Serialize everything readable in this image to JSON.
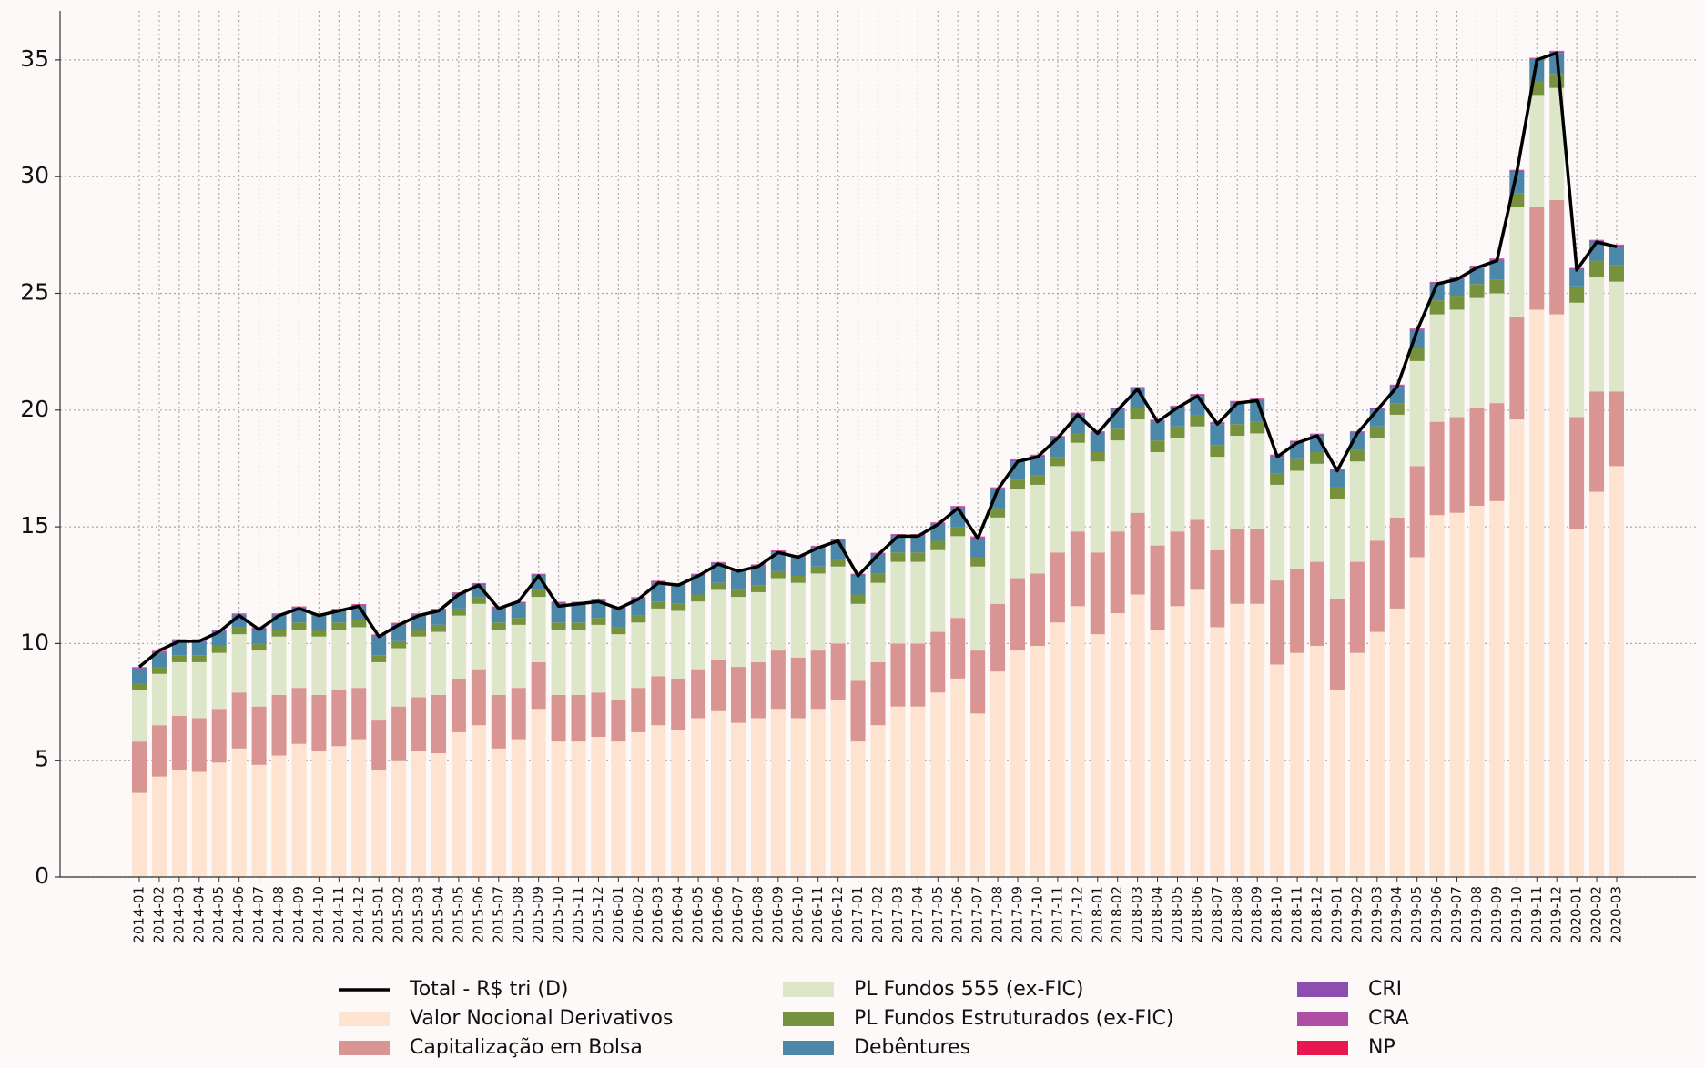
{
  "chart_data": {
    "type": "bar",
    "stacked": true,
    "grid": true,
    "legend_position": "bottom",
    "categories": [
      "2014-01",
      "2014-02",
      "2014-03",
      "2014-04",
      "2014-05",
      "2014-06",
      "2014-07",
      "2014-08",
      "2014-09",
      "2014-10",
      "2014-11",
      "2014-12",
      "2015-01",
      "2015-02",
      "2015-03",
      "2015-04",
      "2015-05",
      "2015-06",
      "2015-07",
      "2015-08",
      "2015-09",
      "2015-10",
      "2015-11",
      "2015-12",
      "2016-01",
      "2016-02",
      "2016-03",
      "2016-04",
      "2016-05",
      "2016-06",
      "2016-07",
      "2016-08",
      "2016-09",
      "2016-10",
      "2016-11",
      "2016-12",
      "2017-01",
      "2017-02",
      "2017-03",
      "2017-04",
      "2017-05",
      "2017-06",
      "2017-07",
      "2017-08",
      "2017-09",
      "2017-10",
      "2017-11",
      "2017-12",
      "2018-01",
      "2018-02",
      "2018-03",
      "2018-04",
      "2018-05",
      "2018-06",
      "2018-07",
      "2018-08",
      "2018-09",
      "2018-10",
      "2018-11",
      "2018-12",
      "2019-01",
      "2019-02",
      "2019-03",
      "2019-04",
      "2019-05",
      "2019-06",
      "2019-07",
      "2019-08",
      "2019-09",
      "2019-10",
      "2019-11",
      "2019-12",
      "2020-01",
      "2020-02",
      "2020-03"
    ],
    "ylim": [
      0,
      37.1
    ],
    "yticks": [
      0,
      5,
      10,
      15,
      20,
      25,
      30,
      35
    ],
    "series": [
      {
        "name": "Valor Nocional Derivativos",
        "color": "#fde3d0",
        "values": [
          3.6,
          4.3,
          4.6,
          4.5,
          4.9,
          5.5,
          4.8,
          5.2,
          5.7,
          5.4,
          5.6,
          5.9,
          4.6,
          5.0,
          5.4,
          5.3,
          6.2,
          6.5,
          5.5,
          5.9,
          7.2,
          5.8,
          5.8,
          6.0,
          5.8,
          6.2,
          6.5,
          6.3,
          6.8,
          7.1,
          6.6,
          6.8,
          7.2,
          6.8,
          7.2,
          7.6,
          5.8,
          6.5,
          7.3,
          7.3,
          7.9,
          8.5,
          7.0,
          8.8,
          9.7,
          9.9,
          10.9,
          11.6,
          10.4,
          11.3,
          12.1,
          10.6,
          11.6,
          12.3,
          10.7,
          11.7,
          11.7,
          9.1,
          9.6,
          9.9,
          8.0,
          9.6,
          10.5,
          11.5,
          13.7,
          15.5,
          15.6,
          15.9,
          16.1,
          19.6,
          24.3,
          24.1,
          14.9,
          16.5,
          17.6
        ]
      },
      {
        "name": "Capitalização em Bolsa",
        "color": "#d99593",
        "values": [
          2.2,
          2.2,
          2.3,
          2.3,
          2.3,
          2.4,
          2.5,
          2.6,
          2.4,
          2.4,
          2.4,
          2.2,
          2.1,
          2.3,
          2.3,
          2.5,
          2.3,
          2.4,
          2.3,
          2.2,
          2.0,
          2.0,
          2.0,
          1.9,
          1.8,
          1.9,
          2.1,
          2.2,
          2.1,
          2.2,
          2.4,
          2.4,
          2.5,
          2.6,
          2.5,
          2.4,
          2.6,
          2.7,
          2.7,
          2.7,
          2.6,
          2.6,
          2.7,
          2.9,
          3.1,
          3.1,
          3.0,
          3.2,
          3.5,
          3.5,
          3.5,
          3.6,
          3.2,
          3.0,
          3.3,
          3.2,
          3.2,
          3.6,
          3.6,
          3.6,
          3.9,
          3.9,
          3.9,
          3.9,
          3.9,
          4.0,
          4.1,
          4.2,
          4.2,
          4.4,
          4.4,
          4.9,
          4.8,
          4.3,
          3.2
        ]
      },
      {
        "name": "PL Fundos 555 (ex-FIC)",
        "color": "#dde6c8",
        "values": [
          2.2,
          2.2,
          2.3,
          2.4,
          2.4,
          2.5,
          2.4,
          2.5,
          2.5,
          2.5,
          2.6,
          2.6,
          2.5,
          2.5,
          2.6,
          2.7,
          2.7,
          2.8,
          2.8,
          2.7,
          2.8,
          2.8,
          2.8,
          2.9,
          2.8,
          2.8,
          2.9,
          2.9,
          2.9,
          3.0,
          3.0,
          3.0,
          3.1,
          3.2,
          3.3,
          3.3,
          3.3,
          3.4,
          3.5,
          3.5,
          3.5,
          3.5,
          3.6,
          3.7,
          3.8,
          3.8,
          3.7,
          3.8,
          3.9,
          3.9,
          4.0,
          4.0,
          4.0,
          4.0,
          4.0,
          4.0,
          4.1,
          4.1,
          4.2,
          4.2,
          4.3,
          4.3,
          4.4,
          4.4,
          4.5,
          4.6,
          4.6,
          4.7,
          4.7,
          4.7,
          4.8,
          4.8,
          4.9,
          4.9,
          4.7
        ]
      },
      {
        "name": "PL Fundos Estruturados (ex-FIC)",
        "color": "#76923c",
        "values": [
          0.3,
          0.3,
          0.3,
          0.3,
          0.3,
          0.3,
          0.3,
          0.3,
          0.3,
          0.3,
          0.3,
          0.3,
          0.3,
          0.3,
          0.3,
          0.3,
          0.3,
          0.3,
          0.3,
          0.3,
          0.3,
          0.3,
          0.3,
          0.3,
          0.3,
          0.3,
          0.3,
          0.3,
          0.3,
          0.3,
          0.3,
          0.3,
          0.3,
          0.3,
          0.3,
          0.3,
          0.4,
          0.4,
          0.4,
          0.4,
          0.4,
          0.4,
          0.4,
          0.4,
          0.4,
          0.4,
          0.4,
          0.4,
          0.4,
          0.5,
          0.5,
          0.5,
          0.5,
          0.5,
          0.5,
          0.5,
          0.5,
          0.5,
          0.5,
          0.5,
          0.5,
          0.5,
          0.5,
          0.5,
          0.6,
          0.6,
          0.6,
          0.6,
          0.6,
          0.6,
          0.6,
          0.6,
          0.7,
          0.7,
          0.7
        ]
      },
      {
        "name": "Debêntures",
        "color": "#4a87a8",
        "values": [
          0.6,
          0.6,
          0.6,
          0.6,
          0.6,
          0.5,
          0.6,
          0.6,
          0.6,
          0.6,
          0.5,
          0.6,
          0.8,
          0.7,
          0.6,
          0.6,
          0.6,
          0.5,
          0.6,
          0.6,
          0.6,
          0.8,
          0.8,
          0.7,
          0.8,
          0.7,
          0.8,
          0.8,
          0.8,
          0.8,
          0.8,
          0.8,
          0.8,
          0.8,
          0.8,
          0.8,
          0.8,
          0.8,
          0.7,
          0.7,
          0.7,
          0.8,
          0.8,
          0.8,
          0.8,
          0.8,
          0.8,
          0.8,
          0.8,
          0.8,
          0.8,
          0.8,
          0.8,
          0.8,
          0.9,
          0.9,
          0.9,
          0.7,
          0.7,
          0.7,
          0.7,
          0.7,
          0.7,
          0.7,
          0.7,
          0.7,
          0.7,
          0.7,
          0.8,
          0.9,
          0.9,
          0.9,
          0.7,
          0.8,
          0.8
        ]
      },
      {
        "name": "CRI",
        "color": "#8c4fb0",
        "values": [
          0.05,
          0.05,
          0.05,
          0.05,
          0.05,
          0.05,
          0.05,
          0.05,
          0.05,
          0.05,
          0.05,
          0.05,
          0.05,
          0.05,
          0.05,
          0.05,
          0.05,
          0.05,
          0.05,
          0.05,
          0.05,
          0.05,
          0.05,
          0.05,
          0.05,
          0.05,
          0.05,
          0.05,
          0.05,
          0.05,
          0.05,
          0.05,
          0.05,
          0.05,
          0.05,
          0.05,
          0.05,
          0.05,
          0.05,
          0.05,
          0.05,
          0.05,
          0.05,
          0.05,
          0.05,
          0.05,
          0.05,
          0.05,
          0.05,
          0.05,
          0.05,
          0.05,
          0.05,
          0.05,
          0.05,
          0.05,
          0.05,
          0.05,
          0.05,
          0.05,
          0.05,
          0.05,
          0.05,
          0.05,
          0.05,
          0.05,
          0.05,
          0.05,
          0.05,
          0.05,
          0.05,
          0.05,
          0.05,
          0.05,
          0.05
        ]
      },
      {
        "name": "CRA",
        "color": "#b04ea6",
        "values": [
          0.03,
          0.03,
          0.03,
          0.03,
          0.03,
          0.03,
          0.03,
          0.03,
          0.03,
          0.03,
          0.03,
          0.03,
          0.03,
          0.03,
          0.03,
          0.03,
          0.03,
          0.03,
          0.03,
          0.03,
          0.03,
          0.03,
          0.03,
          0.03,
          0.03,
          0.03,
          0.03,
          0.03,
          0.03,
          0.03,
          0.03,
          0.03,
          0.03,
          0.03,
          0.03,
          0.03,
          0.03,
          0.03,
          0.03,
          0.03,
          0.03,
          0.03,
          0.03,
          0.03,
          0.03,
          0.03,
          0.03,
          0.03,
          0.03,
          0.03,
          0.03,
          0.03,
          0.03,
          0.03,
          0.03,
          0.03,
          0.03,
          0.03,
          0.03,
          0.03,
          0.03,
          0.03,
          0.03,
          0.03,
          0.03,
          0.03,
          0.03,
          0.03,
          0.03,
          0.03,
          0.03,
          0.03,
          0.03,
          0.03,
          0.03
        ]
      },
      {
        "name": "NP",
        "color": "#e8174f",
        "values": [
          0.01,
          0.01,
          0.01,
          0.01,
          0.01,
          0.01,
          0.01,
          0.01,
          0.01,
          0.01,
          0.01,
          0.01,
          0.01,
          0.01,
          0.01,
          0.01,
          0.01,
          0.01,
          0.01,
          0.01,
          0.01,
          0.01,
          0.01,
          0.01,
          0.01,
          0.01,
          0.01,
          0.01,
          0.01,
          0.01,
          0.01,
          0.01,
          0.01,
          0.01,
          0.01,
          0.01,
          0.01,
          0.01,
          0.01,
          0.01,
          0.01,
          0.01,
          0.01,
          0.01,
          0.01,
          0.01,
          0.01,
          0.01,
          0.01,
          0.01,
          0.01,
          0.01,
          0.01,
          0.01,
          0.01,
          0.01,
          0.01,
          0.01,
          0.01,
          0.01,
          0.01,
          0.01,
          0.01,
          0.01,
          0.01,
          0.01,
          0.01,
          0.01,
          0.01,
          0.01,
          0.01,
          0.01,
          0.01,
          0.01,
          0.01
        ]
      },
      {
        "name": "Total - R$ tri (D)",
        "type": "line",
        "color": "#000000",
        "values": [
          9.0,
          9.7,
          10.1,
          10.1,
          10.5,
          11.2,
          10.6,
          11.2,
          11.5,
          11.2,
          11.4,
          11.6,
          10.3,
          10.8,
          11.2,
          11.4,
          12.1,
          12.5,
          11.5,
          11.8,
          12.9,
          11.6,
          11.7,
          11.8,
          11.5,
          11.9,
          12.6,
          12.5,
          12.9,
          13.4,
          13.1,
          13.3,
          13.9,
          13.7,
          14.1,
          14.4,
          12.9,
          13.8,
          14.6,
          14.6,
          15.1,
          15.8,
          14.5,
          16.6,
          17.8,
          18.0,
          18.8,
          19.8,
          19.0,
          20.0,
          20.9,
          19.5,
          20.1,
          20.6,
          19.4,
          20.3,
          20.4,
          18.0,
          18.6,
          18.9,
          17.4,
          19.0,
          20.0,
          21.0,
          23.4,
          25.4,
          25.6,
          26.1,
          26.4,
          30.2,
          35.0,
          35.3,
          26.0,
          27.2,
          27.0
        ]
      }
    ]
  }
}
